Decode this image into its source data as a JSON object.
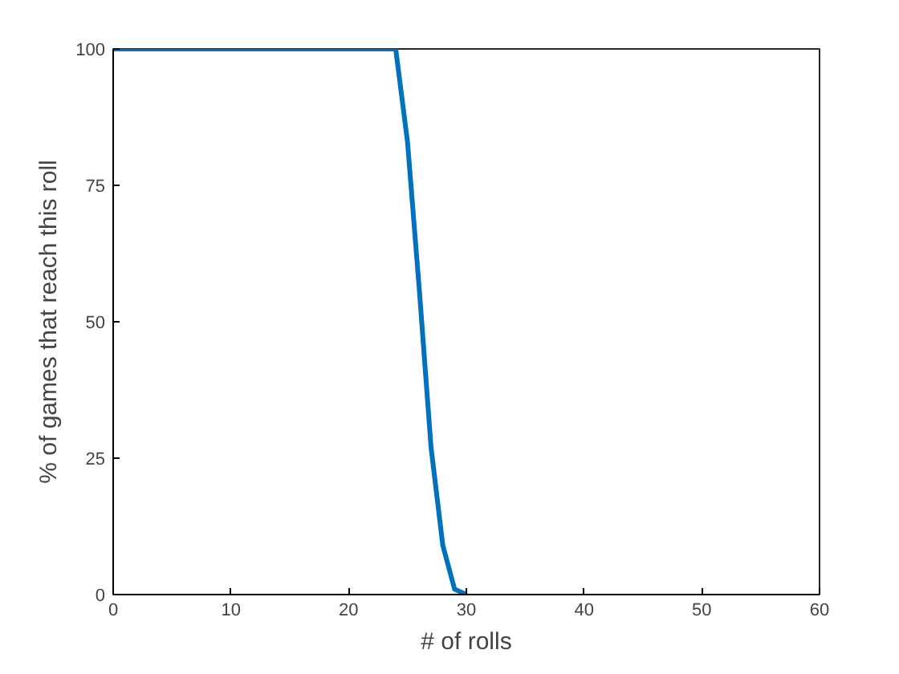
{
  "chart_data": {
    "type": "line",
    "xlabel": "# of rolls",
    "ylabel": "% of games that reach this roll",
    "x": [
      0,
      1,
      2,
      3,
      4,
      5,
      6,
      7,
      8,
      9,
      10,
      11,
      12,
      13,
      14,
      15,
      16,
      17,
      18,
      19,
      20,
      21,
      22,
      23,
      24,
      25,
      26,
      27,
      28,
      29,
      30
    ],
    "series": [
      {
        "color": "#0072bd",
        "values": [
          100,
          100,
          100,
          100,
          100,
          100,
          100,
          100,
          100,
          100,
          100,
          100,
          100,
          100,
          100,
          100,
          100,
          100,
          100,
          100,
          100,
          100,
          100,
          100,
          100,
          83,
          56,
          27,
          9,
          1,
          0
        ]
      }
    ],
    "xlim": [
      0,
      60
    ],
    "xticks": [
      0,
      10,
      20,
      30,
      40,
      50,
      60
    ],
    "ylim": [
      0,
      100
    ],
    "yticks": [
      0,
      25,
      50,
      75,
      100
    ],
    "grid": false,
    "marker": "none",
    "line_style": "solid"
  }
}
